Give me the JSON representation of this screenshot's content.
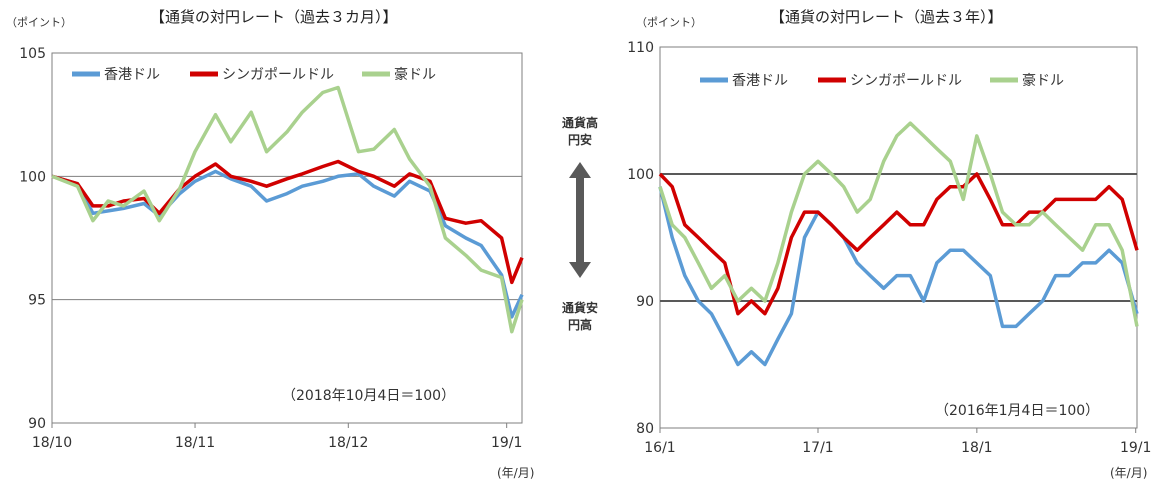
{
  "chart_data": [
    {
      "type": "line",
      "title": "【通貨の対円レート（過去３カ月）】",
      "ylabel": "（ポイント）",
      "xlabel": "(年/月)",
      "ylim": [
        90,
        105
      ],
      "yticks": [
        90,
        95,
        100,
        105
      ],
      "x_range": [
        "2018-10-04",
        "2019-01-04"
      ],
      "xtick_labels": [
        "18/10",
        "18/11",
        "18/12",
        "19/1"
      ],
      "xtick_dates": [
        "2018-10-01",
        "2018-11-01",
        "2018-12-01",
        "2019-01-01"
      ],
      "grid": "horizontal at 95 and 100",
      "legend": "top-left",
      "note": "（2018年10月4日＝100）",
      "series": [
        {
          "name": "香港ドル",
          "color": "#5B9BD5",
          "x": [
            "2018-10-04",
            "2018-10-09",
            "2018-10-12",
            "2018-10-15",
            "2018-10-18",
            "2018-10-22",
            "2018-10-25",
            "2018-10-29",
            "2018-11-01",
            "2018-11-05",
            "2018-11-08",
            "2018-11-12",
            "2018-11-15",
            "2018-11-19",
            "2018-11-22",
            "2018-11-26",
            "2018-11-29",
            "2018-12-03",
            "2018-12-06",
            "2018-12-10",
            "2018-12-13",
            "2018-12-17",
            "2018-12-20",
            "2018-12-24",
            "2018-12-27",
            "2018-12-31",
            "2019-01-02",
            "2019-01-04"
          ],
          "values": [
            100,
            99.7,
            98.5,
            98.6,
            98.7,
            98.9,
            98.4,
            99.3,
            99.8,
            100.2,
            99.9,
            99.6,
            99.0,
            99.3,
            99.6,
            99.8,
            100.0,
            100.1,
            99.6,
            99.2,
            99.8,
            99.4,
            98.0,
            97.5,
            97.2,
            96.0,
            94.3,
            95.2
          ]
        },
        {
          "name": "シンガポールドル",
          "color": "#D00000",
          "x": [
            "2018-10-04",
            "2018-10-09",
            "2018-10-12",
            "2018-10-15",
            "2018-10-18",
            "2018-10-22",
            "2018-10-25",
            "2018-10-29",
            "2018-11-01",
            "2018-11-05",
            "2018-11-08",
            "2018-11-12",
            "2018-11-15",
            "2018-11-19",
            "2018-11-22",
            "2018-11-26",
            "2018-11-29",
            "2018-12-03",
            "2018-12-06",
            "2018-12-10",
            "2018-12-13",
            "2018-12-17",
            "2018-12-20",
            "2018-12-24",
            "2018-12-27",
            "2018-12-31",
            "2019-01-02",
            "2019-01-04"
          ],
          "values": [
            100,
            99.7,
            98.8,
            98.8,
            99.0,
            99.1,
            98.5,
            99.5,
            100.0,
            100.5,
            100.0,
            99.8,
            99.6,
            99.9,
            100.1,
            100.4,
            100.6,
            100.2,
            100.0,
            99.6,
            100.1,
            99.8,
            98.3,
            98.1,
            98.2,
            97.5,
            95.7,
            96.7
          ]
        },
        {
          "name": "豪ドル",
          "color": "#A9D18E",
          "x": [
            "2018-10-04",
            "2018-10-09",
            "2018-10-12",
            "2018-10-15",
            "2018-10-18",
            "2018-10-22",
            "2018-10-25",
            "2018-10-29",
            "2018-11-01",
            "2018-11-05",
            "2018-11-08",
            "2018-11-12",
            "2018-11-15",
            "2018-11-19",
            "2018-11-22",
            "2018-11-26",
            "2018-11-29",
            "2018-12-03",
            "2018-12-06",
            "2018-12-10",
            "2018-12-13",
            "2018-12-17",
            "2018-12-20",
            "2018-12-24",
            "2018-12-27",
            "2018-12-31",
            "2019-01-02",
            "2019-01-04"
          ],
          "values": [
            100,
            99.6,
            98.2,
            99.0,
            98.8,
            99.4,
            98.2,
            99.5,
            101.0,
            102.5,
            101.4,
            102.6,
            101.0,
            101.8,
            102.6,
            103.4,
            103.6,
            101.0,
            101.1,
            101.9,
            100.7,
            99.6,
            97.5,
            96.8,
            96.2,
            95.9,
            93.7,
            95.0
          ]
        }
      ]
    },
    {
      "type": "line",
      "title": "【通貨の対円レート（過去３年）】",
      "ylabel": "（ポイント）",
      "xlabel": "(年/月)",
      "ylim": [
        80,
        110
      ],
      "yticks": [
        80,
        90,
        100,
        110
      ],
      "x_range": [
        "2016-01-04",
        "2019-01-04"
      ],
      "xtick_labels": [
        "16/1",
        "17/1",
        "18/1",
        "19/1"
      ],
      "xtick_dates": [
        "2016-01-01",
        "2017-01-01",
        "2018-01-01",
        "2019-01-01"
      ],
      "grid": "horizontal at 90 and 100",
      "legend": "top-left",
      "note": "（2016年1月4日＝100）",
      "series": [
        {
          "name": "香港ドル",
          "color": "#5B9BD5",
          "x": [
            "2016-01-04",
            "2016-02-01",
            "2016-03-01",
            "2016-04-01",
            "2016-05-01",
            "2016-06-01",
            "2016-07-01",
            "2016-08-01",
            "2016-09-01",
            "2016-10-01",
            "2016-11-01",
            "2016-12-01",
            "2017-01-01",
            "2017-02-01",
            "2017-03-01",
            "2017-04-01",
            "2017-05-01",
            "2017-06-01",
            "2017-07-01",
            "2017-08-01",
            "2017-09-01",
            "2017-10-01",
            "2017-11-01",
            "2017-12-01",
            "2018-01-01",
            "2018-02-01",
            "2018-03-01",
            "2018-04-01",
            "2018-05-01",
            "2018-06-01",
            "2018-07-01",
            "2018-08-01",
            "2018-09-01",
            "2018-10-01",
            "2018-11-01",
            "2018-12-01",
            "2019-01-04"
          ],
          "values": [
            99,
            95,
            92,
            90,
            89,
            87,
            85,
            86,
            85,
            87,
            89,
            95,
            97,
            96,
            95,
            93,
            92,
            91,
            92,
            92,
            90,
            93,
            94,
            94,
            93,
            92,
            88,
            88,
            89,
            90,
            92,
            92,
            93,
            93,
            94,
            93,
            89
          ]
        },
        {
          "name": "シンガポールドル",
          "color": "#D00000",
          "x": [
            "2016-01-04",
            "2016-02-01",
            "2016-03-01",
            "2016-04-01",
            "2016-05-01",
            "2016-06-01",
            "2016-07-01",
            "2016-08-01",
            "2016-09-01",
            "2016-10-01",
            "2016-11-01",
            "2016-12-01",
            "2017-01-01",
            "2017-02-01",
            "2017-03-01",
            "2017-04-01",
            "2017-05-01",
            "2017-06-01",
            "2017-07-01",
            "2017-08-01",
            "2017-09-01",
            "2017-10-01",
            "2017-11-01",
            "2017-12-01",
            "2018-01-01",
            "2018-02-01",
            "2018-03-01",
            "2018-04-01",
            "2018-05-01",
            "2018-06-01",
            "2018-07-01",
            "2018-08-01",
            "2018-09-01",
            "2018-10-01",
            "2018-11-01",
            "2018-12-01",
            "2019-01-04"
          ],
          "values": [
            100,
            99,
            96,
            95,
            94,
            93,
            89,
            90,
            89,
            91,
            95,
            97,
            97,
            96,
            95,
            94,
            95,
            96,
            97,
            96,
            96,
            98,
            99,
            99,
            100,
            98,
            96,
            96,
            97,
            97,
            98,
            98,
            98,
            98,
            99,
            98,
            94
          ]
        },
        {
          "name": "豪ドル",
          "color": "#A9D18E",
          "x": [
            "2016-01-04",
            "2016-02-01",
            "2016-03-01",
            "2016-04-01",
            "2016-05-01",
            "2016-06-01",
            "2016-07-01",
            "2016-08-01",
            "2016-09-01",
            "2016-10-01",
            "2016-11-01",
            "2016-12-01",
            "2017-01-01",
            "2017-02-01",
            "2017-03-01",
            "2017-04-01",
            "2017-05-01",
            "2017-06-01",
            "2017-07-01",
            "2017-08-01",
            "2017-09-01",
            "2017-10-01",
            "2017-11-01",
            "2017-12-01",
            "2018-01-01",
            "2018-02-01",
            "2018-03-01",
            "2018-04-01",
            "2018-05-01",
            "2018-06-01",
            "2018-07-01",
            "2018-08-01",
            "2018-09-01",
            "2018-10-01",
            "2018-11-01",
            "2018-12-01",
            "2019-01-04"
          ],
          "values": [
            99,
            96,
            95,
            93,
            91,
            92,
            90,
            91,
            90,
            93,
            97,
            100,
            101,
            100,
            99,
            97,
            98,
            101,
            103,
            104,
            103,
            102,
            101,
            98,
            103,
            100,
            97,
            96,
            96,
            97,
            96,
            95,
            94,
            96,
            96,
            94,
            88
          ]
        }
      ]
    }
  ],
  "middle": {
    "top_label": "通貨高\n円安",
    "bottom_label": "通貨安\n円高",
    "arrow_color": "#595959"
  }
}
